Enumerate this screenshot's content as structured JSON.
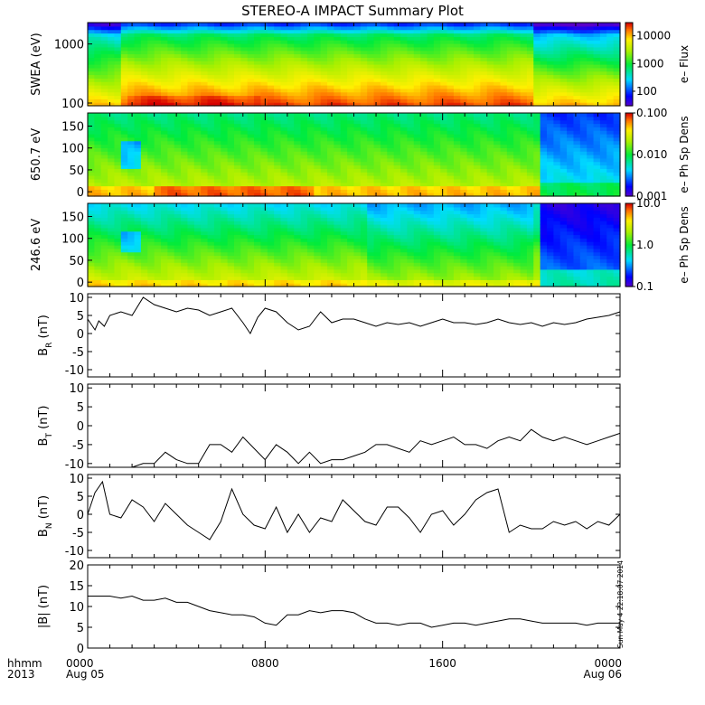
{
  "title": "STEREO-A IMPACT Summary Plot",
  "timestamp": "Sun May  4 22:18:07 2014",
  "footer": {
    "time_label": "hhmm",
    "year_label": "2013",
    "ticks": [
      {
        "hhmm": "0000",
        "date": "Aug 05"
      },
      {
        "hhmm": "0800",
        "date": ""
      },
      {
        "hhmm": "1600",
        "date": ""
      },
      {
        "hhmm": "0000",
        "date": "Aug 06"
      }
    ]
  },
  "chart_data": [
    {
      "type": "heatmap",
      "ylabel": "SWEA (eV)",
      "yscale": "log",
      "ylim": [
        90,
        2300
      ],
      "yticks": [
        {
          "v": 100,
          "label": "100"
        },
        {
          "v": 1000,
          "label": "1000"
        }
      ],
      "colorbar": {
        "label": "e– Flux",
        "scale": "log",
        "range": [
          30,
          30000
        ],
        "ticks": [
          {
            "v": 100,
            "label": "100"
          },
          {
            "v": 1000,
            "label": "1000"
          },
          {
            "v": 10000,
            "label": "10000"
          }
        ]
      }
    },
    {
      "type": "heatmap",
      "ylabel": "650.7 eV",
      "yscale": "linear",
      "ylim": [
        -10,
        180
      ],
      "yticks": [
        {
          "v": 0,
          "label": "0"
        },
        {
          "v": 50,
          "label": "50"
        },
        {
          "v": 100,
          "label": "100"
        },
        {
          "v": 150,
          "label": "150"
        }
      ],
      "colorbar": {
        "label": "e– Ph Sp Dens",
        "scale": "log",
        "range": [
          0.001,
          0.1
        ],
        "ticks": [
          {
            "v": 0.001,
            "label": "0.001"
          },
          {
            "v": 0.01,
            "label": "0.010"
          },
          {
            "v": 0.1,
            "label": "0.100"
          }
        ]
      }
    },
    {
      "type": "heatmap",
      "ylabel": "246.6 eV",
      "yscale": "linear",
      "ylim": [
        -10,
        180
      ],
      "yticks": [
        {
          "v": 0,
          "label": "0"
        },
        {
          "v": 50,
          "label": "50"
        },
        {
          "v": 100,
          "label": "100"
        },
        {
          "v": 150,
          "label": "150"
        }
      ],
      "colorbar": {
        "label": "e– Ph Sp Dens",
        "scale": "log",
        "range": [
          0.1,
          10
        ],
        "ticks": [
          {
            "v": 0.1,
            "label": "0.1"
          },
          {
            "v": 1,
            "label": "1.0"
          },
          {
            "v": 10,
            "label": "10.0"
          }
        ]
      }
    },
    {
      "type": "line",
      "ylabel_main": "B",
      "ylabel_sub": "R",
      "ylabel_unit": " (nT)",
      "xlim": [
        0,
        24
      ],
      "ylim": [
        -12,
        11
      ],
      "yticks": [
        -10,
        -5,
        0,
        5,
        10
      ],
      "x": [
        0,
        0.33,
        0.5,
        0.75,
        1,
        1.5,
        2,
        2.5,
        3,
        3.5,
        4,
        4.5,
        5,
        5.5,
        6,
        6.5,
        7,
        7.33,
        7.67,
        8,
        8.5,
        9,
        9.5,
        10,
        10.5,
        11,
        11.5,
        12,
        12.5,
        13,
        13.5,
        14,
        14.5,
        15,
        15.5,
        16,
        16.5,
        17,
        17.5,
        18,
        18.5,
        19,
        19.5,
        20,
        20.5,
        21,
        21.5,
        22,
        22.5,
        23,
        23.5,
        24
      ],
      "y": [
        4,
        1,
        3.5,
        2,
        5,
        6,
        5,
        10,
        8,
        7,
        6,
        7,
        6.5,
        5,
        6,
        7,
        3,
        0,
        4.5,
        7,
        6,
        3,
        1,
        2,
        6,
        3,
        4,
        4,
        3,
        2,
        3,
        2.5,
        3,
        2,
        3,
        4,
        3,
        3,
        2.5,
        3,
        4,
        3,
        2.5,
        3,
        2,
        3,
        2.5,
        3,
        4,
        4.5,
        5,
        6
      ]
    },
    {
      "type": "line",
      "ylabel_main": "B",
      "ylabel_sub": "T",
      "ylabel_unit": " (nT)",
      "xlim": [
        0,
        24
      ],
      "ylim": [
        -11,
        11
      ],
      "yticks": [
        -10,
        -5,
        0,
        5,
        10
      ],
      "x": [
        0,
        1,
        1.5,
        2,
        2.5,
        3,
        3.5,
        4,
        4.5,
        5,
        5.5,
        6,
        6.5,
        7,
        7.5,
        8,
        8.5,
        9,
        9.5,
        10,
        10.5,
        11,
        11.5,
        12,
        12.5,
        13,
        13.5,
        14,
        14.5,
        15,
        15.5,
        16,
        16.5,
        17,
        17.5,
        18,
        18.5,
        19,
        19.5,
        20,
        20.5,
        21,
        21.5,
        22,
        22.5,
        23,
        23.5,
        24
      ],
      "y": [
        -11,
        -11,
        -11,
        -11,
        -10,
        -10,
        -7,
        -9,
        -10,
        -10,
        -5,
        -5,
        -7,
        -3,
        -6,
        -9,
        -5,
        -7,
        -10,
        -7,
        -10,
        -9,
        -9,
        -8,
        -7,
        -5,
        -5,
        -6,
        -7,
        -4,
        -5,
        -4,
        -3,
        -5,
        -5,
        -6,
        -4,
        -3,
        -4,
        -1,
        -3,
        -4,
        -3,
        -4,
        -5,
        -4,
        -3,
        -2
      ]
    },
    {
      "type": "line",
      "ylabel_main": "B",
      "ylabel_sub": "N",
      "ylabel_unit": " (nT)",
      "xlim": [
        0,
        24
      ],
      "ylim": [
        -12,
        11
      ],
      "yticks": [
        -10,
        -5,
        0,
        5,
        10
      ],
      "x": [
        0,
        0.33,
        0.67,
        1,
        1.5,
        2,
        2.5,
        3,
        3.5,
        4,
        4.5,
        5,
        5.5,
        6,
        6.5,
        7,
        7.5,
        8,
        8.5,
        9,
        9.5,
        10,
        10.5,
        11,
        11.5,
        12,
        12.5,
        13,
        13.5,
        14,
        14.5,
        15,
        15.5,
        16,
        16.5,
        17,
        17.5,
        18,
        18.5,
        19,
        19.5,
        20,
        20.5,
        21,
        21.5,
        22,
        22.5,
        23,
        23.5,
        24
      ],
      "y": [
        0,
        6,
        9,
        0,
        -1,
        4,
        2,
        -2,
        3,
        0,
        -3,
        -5,
        -7,
        -2,
        7,
        0,
        -3,
        -4,
        2,
        -5,
        0,
        -5,
        -1,
        -2,
        4,
        1,
        -2,
        -3,
        2,
        2,
        -1,
        -5,
        0,
        1,
        -3,
        0,
        4,
        6,
        7,
        -5,
        -3,
        -4,
        -4,
        -2,
        -3,
        -2,
        -4,
        -2,
        -3,
        0
      ]
    },
    {
      "type": "line",
      "ylabel_main": "|B|",
      "ylabel_sub": "",
      "ylabel_unit": " (nT)",
      "xlim": [
        0,
        24
      ],
      "ylim": [
        0,
        20
      ],
      "yticks": [
        0,
        5,
        10,
        15,
        20
      ],
      "x": [
        0,
        1,
        1.5,
        2,
        2.5,
        3,
        3.5,
        4,
        4.5,
        5,
        5.5,
        6,
        6.5,
        7,
        7.5,
        8,
        8.5,
        9,
        9.5,
        10,
        10.5,
        11,
        11.5,
        12,
        12.5,
        13,
        13.5,
        14,
        14.5,
        15,
        15.5,
        16,
        16.5,
        17,
        17.5,
        18,
        18.5,
        19,
        19.5,
        20,
        20.5,
        21,
        21.5,
        22,
        22.5,
        23,
        23.5,
        24
      ],
      "y": [
        12.5,
        12.5,
        12,
        12.5,
        11.5,
        11.5,
        12,
        11,
        11,
        10,
        9,
        8.5,
        8,
        8,
        7.5,
        6,
        5.5,
        8,
        8,
        9,
        8.5,
        9,
        9,
        8.5,
        7,
        6,
        6,
        5.5,
        6,
        6,
        5,
        5.5,
        6,
        6,
        5.5,
        6,
        6.5,
        7,
        7,
        6.5,
        6,
        6,
        6,
        6,
        5.5,
        6,
        6,
        6
      ]
    }
  ]
}
